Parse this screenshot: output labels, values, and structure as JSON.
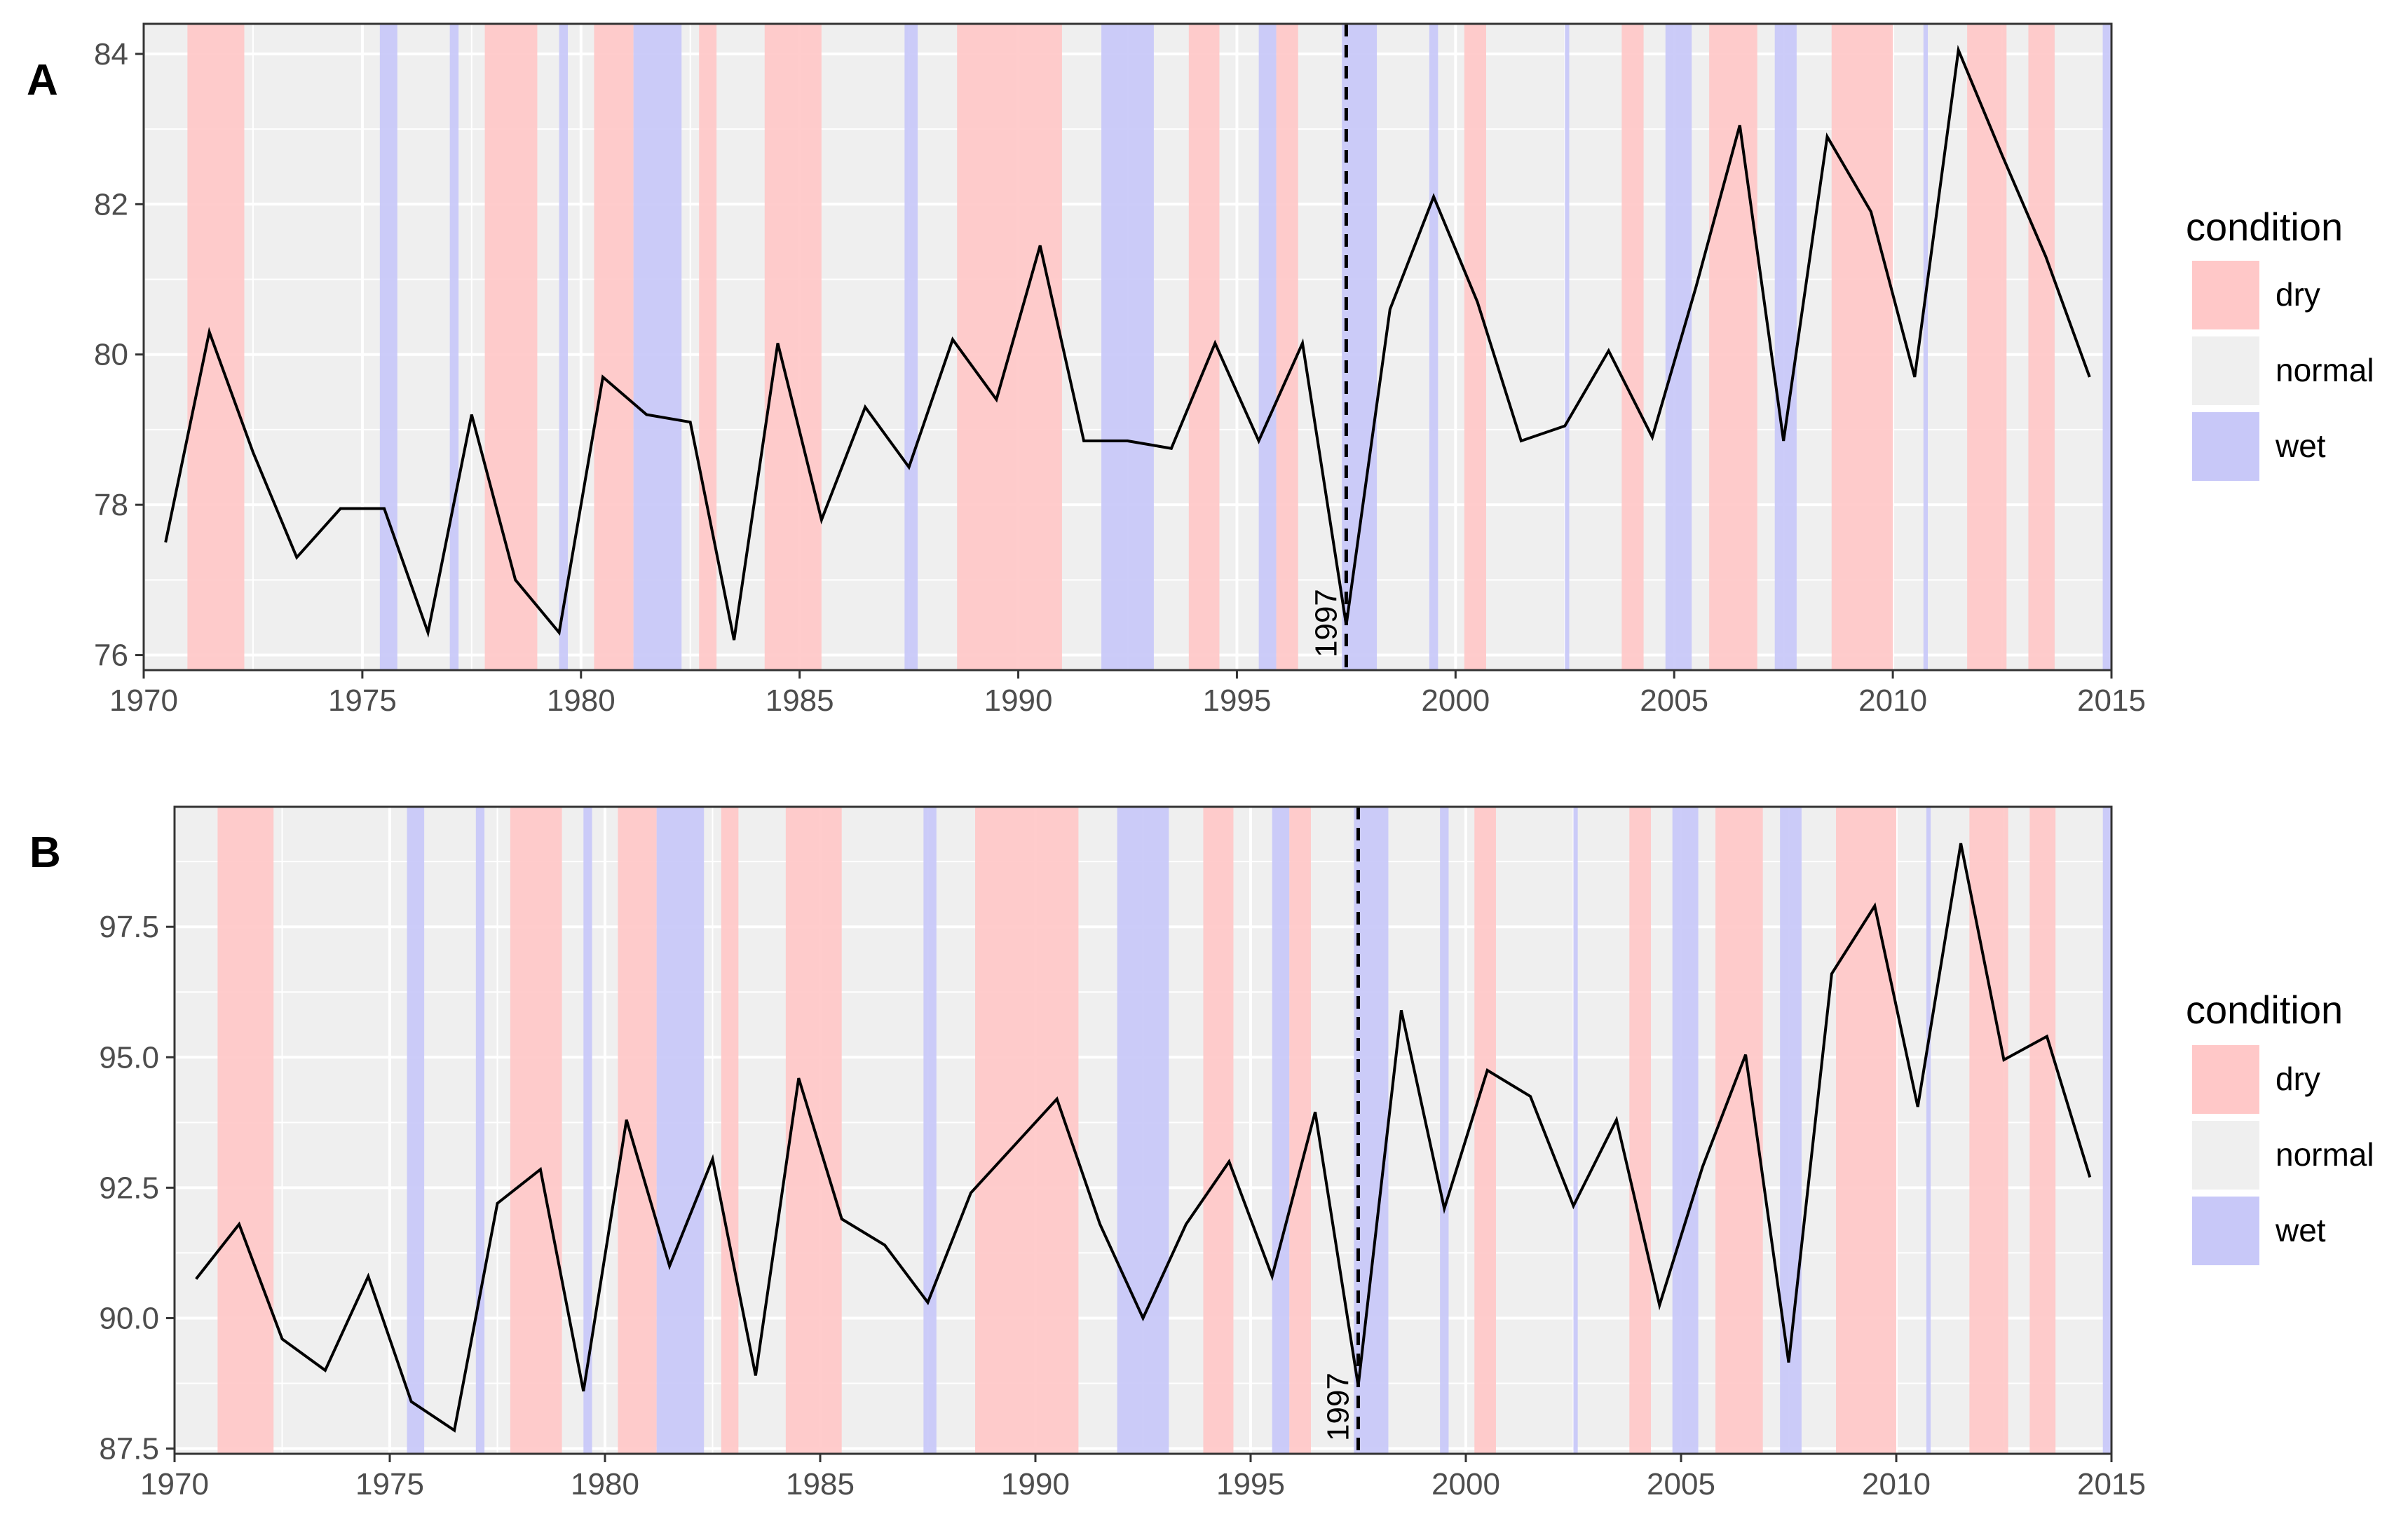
{
  "chart_data": [
    {
      "type": "line",
      "panel_label": "A",
      "title": "",
      "xlabel": "",
      "ylabel": "",
      "xlim": [
        1970,
        2015
      ],
      "ylim": [
        75.8,
        84.4
      ],
      "x_ticks": [
        1970,
        1975,
        1980,
        1985,
        1990,
        1995,
        2000,
        2005,
        2010,
        2015
      ],
      "y_ticks": [
        76,
        78,
        80,
        82,
        84
      ],
      "y_tick_labels": [
        "76",
        "78",
        "80",
        "82",
        "84"
      ],
      "grid": true,
      "legend_position": "right",
      "legend": {
        "title": "condition",
        "items": [
          {
            "label": "dry",
            "color": "#ffc8c8"
          },
          {
            "label": "normal",
            "color": "#efefef"
          },
          {
            "label": "wet",
            "color": "#c8c8f8"
          }
        ]
      },
      "condition_bands": [
        {
          "condition": "dry",
          "start": 1971.0,
          "end": 1972.3
        },
        {
          "condition": "wet",
          "start": 1975.4,
          "end": 1975.8
        },
        {
          "condition": "wet",
          "start": 1977.0,
          "end": 1977.2
        },
        {
          "condition": "dry",
          "start": 1977.8,
          "end": 1979.0
        },
        {
          "condition": "wet",
          "start": 1979.5,
          "end": 1979.7
        },
        {
          "condition": "dry",
          "start": 1980.3,
          "end": 1981.2
        },
        {
          "condition": "wet",
          "start": 1981.2,
          "end": 1982.3
        },
        {
          "condition": "dry",
          "start": 1982.7,
          "end": 1983.1
        },
        {
          "condition": "dry",
          "start": 1984.2,
          "end": 1985.5
        },
        {
          "condition": "wet",
          "start": 1987.4,
          "end": 1987.7
        },
        {
          "condition": "dry",
          "start": 1988.6,
          "end": 1991.0
        },
        {
          "condition": "wet",
          "start": 1991.9,
          "end": 1993.1
        },
        {
          "condition": "dry",
          "start": 1993.9,
          "end": 1994.6
        },
        {
          "condition": "wet",
          "start": 1995.5,
          "end": 1995.9
        },
        {
          "condition": "dry",
          "start": 1995.9,
          "end": 1996.4
        },
        {
          "condition": "wet",
          "start": 1997.4,
          "end": 1998.2
        },
        {
          "condition": "wet",
          "start": 1999.4,
          "end": 1999.6
        },
        {
          "condition": "dry",
          "start": 2000.2,
          "end": 2000.7
        },
        {
          "condition": "wet",
          "start": 2002.5,
          "end": 2002.6
        },
        {
          "condition": "dry",
          "start": 2003.8,
          "end": 2004.3
        },
        {
          "condition": "wet",
          "start": 2004.8,
          "end": 2005.4
        },
        {
          "condition": "dry",
          "start": 2005.8,
          "end": 2006.9
        },
        {
          "condition": "wet",
          "start": 2007.3,
          "end": 2007.8
        },
        {
          "condition": "dry",
          "start": 2008.6,
          "end": 2010.0
        },
        {
          "condition": "wet",
          "start": 2010.7,
          "end": 2010.8
        },
        {
          "condition": "dry",
          "start": 2011.7,
          "end": 2012.6
        },
        {
          "condition": "dry",
          "start": 2013.1,
          "end": 2013.7
        },
        {
          "condition": "wet",
          "start": 2014.8,
          "end": 2015.0
        }
      ],
      "vline": {
        "x": 1997.5,
        "label": "1997"
      },
      "series": [
        {
          "name": "value",
          "color": "#000000",
          "x": [
            1970.5,
            1971.5,
            1972.5,
            1973.5,
            1974.5,
            1975.5,
            1976.5,
            1977.5,
            1978.5,
            1979.5,
            1980.5,
            1981.5,
            1982.5,
            1983.5,
            1984.5,
            1985.5,
            1986.5,
            1987.5,
            1988.5,
            1989.5,
            1990.5,
            1991.5,
            1992.5,
            1993.5,
            1994.5,
            1995.5,
            1996.5,
            1997.5,
            1998.5,
            1999.5,
            2000.5,
            2001.5,
            2002.5,
            2003.5,
            2004.5,
            2005.5,
            2006.5,
            2007.5,
            2008.5,
            2009.5,
            2010.5,
            2011.5,
            2012.5,
            2013.5,
            2014.5
          ],
          "values": [
            77.5,
            80.3,
            78.7,
            77.3,
            77.95,
            77.95,
            76.3,
            79.2,
            77.0,
            76.3,
            79.7,
            79.2,
            79.1,
            76.2,
            80.15,
            77.8,
            79.3,
            78.5,
            80.2,
            79.4,
            81.45,
            78.85,
            78.85,
            78.75,
            80.15,
            78.85,
            80.15,
            76.4,
            80.6,
            82.1,
            80.7,
            78.85,
            79.05,
            80.05,
            78.9,
            80.9,
            83.05,
            78.85,
            82.9,
            81.9,
            79.7,
            84.05,
            82.65,
            81.3,
            79.7
          ]
        }
      ]
    },
    {
      "type": "line",
      "panel_label": "B",
      "title": "",
      "xlabel": "",
      "ylabel": "",
      "xlim": [
        1970,
        2015
      ],
      "ylim": [
        87.4,
        99.8
      ],
      "x_ticks": [
        1970,
        1975,
        1980,
        1985,
        1990,
        1995,
        2000,
        2005,
        2010,
        2015
      ],
      "y_ticks": [
        87.5,
        90.0,
        92.5,
        95.0,
        97.5
      ],
      "y_tick_labels": [
        "87.5",
        "90.0",
        "92.5",
        "95.0",
        "97.5"
      ],
      "grid": true,
      "legend_position": "right",
      "legend": {
        "title": "condition",
        "items": [
          {
            "label": "dry",
            "color": "#ffc8c8"
          },
          {
            "label": "normal",
            "color": "#efefef"
          },
          {
            "label": "wet",
            "color": "#c8c8f8"
          }
        ]
      },
      "condition_bands": [
        {
          "condition": "dry",
          "start": 1971.0,
          "end": 1972.3
        },
        {
          "condition": "wet",
          "start": 1975.4,
          "end": 1975.8
        },
        {
          "condition": "wet",
          "start": 1977.0,
          "end": 1977.2
        },
        {
          "condition": "dry",
          "start": 1977.8,
          "end": 1979.0
        },
        {
          "condition": "wet",
          "start": 1979.5,
          "end": 1979.7
        },
        {
          "condition": "dry",
          "start": 1980.3,
          "end": 1981.2
        },
        {
          "condition": "wet",
          "start": 1981.2,
          "end": 1982.3
        },
        {
          "condition": "dry",
          "start": 1982.7,
          "end": 1983.1
        },
        {
          "condition": "dry",
          "start": 1984.2,
          "end": 1985.5
        },
        {
          "condition": "wet",
          "start": 1987.4,
          "end": 1987.7
        },
        {
          "condition": "dry",
          "start": 1988.6,
          "end": 1991.0
        },
        {
          "condition": "wet",
          "start": 1991.9,
          "end": 1993.1
        },
        {
          "condition": "dry",
          "start": 1993.9,
          "end": 1994.6
        },
        {
          "condition": "wet",
          "start": 1995.5,
          "end": 1995.9
        },
        {
          "condition": "dry",
          "start": 1995.9,
          "end": 1996.4
        },
        {
          "condition": "wet",
          "start": 1997.4,
          "end": 1998.2
        },
        {
          "condition": "wet",
          "start": 1999.4,
          "end": 1999.6
        },
        {
          "condition": "dry",
          "start": 2000.2,
          "end": 2000.7
        },
        {
          "condition": "wet",
          "start": 2002.5,
          "end": 2002.6
        },
        {
          "condition": "dry",
          "start": 2003.8,
          "end": 2004.3
        },
        {
          "condition": "wet",
          "start": 2004.8,
          "end": 2005.4
        },
        {
          "condition": "dry",
          "start": 2005.8,
          "end": 2006.9
        },
        {
          "condition": "wet",
          "start": 2007.3,
          "end": 2007.8
        },
        {
          "condition": "dry",
          "start": 2008.6,
          "end": 2010.0
        },
        {
          "condition": "wet",
          "start": 2010.7,
          "end": 2010.8
        },
        {
          "condition": "dry",
          "start": 2011.7,
          "end": 2012.6
        },
        {
          "condition": "dry",
          "start": 2013.1,
          "end": 2013.7
        },
        {
          "condition": "wet",
          "start": 2014.8,
          "end": 2015.0
        }
      ],
      "vline": {
        "x": 1997.5,
        "label": "1997"
      },
      "series": [
        {
          "name": "value",
          "color": "#000000",
          "x": [
            1970.5,
            1971.5,
            1972.5,
            1973.5,
            1974.5,
            1975.5,
            1976.5,
            1977.5,
            1978.5,
            1979.5,
            1980.5,
            1981.5,
            1982.5,
            1983.5,
            1984.5,
            1985.5,
            1986.5,
            1987.5,
            1988.5,
            1989.5,
            1990.5,
            1991.5,
            1992.5,
            1993.5,
            1994.5,
            1995.5,
            1996.5,
            1997.5,
            1998.5,
            1999.5,
            2000.5,
            2001.5,
            2002.5,
            2003.5,
            2004.5,
            2005.5,
            2006.5,
            2007.5,
            2008.5,
            2009.5,
            2010.5,
            2011.5,
            2012.5,
            2013.5,
            2014.5
          ],
          "values": [
            90.75,
            91.8,
            89.6,
            89.0,
            90.8,
            88.4,
            87.85,
            92.2,
            92.85,
            88.6,
            93.8,
            91.0,
            93.05,
            88.9,
            94.6,
            91.9,
            91.4,
            90.3,
            92.4,
            93.3,
            94.2,
            91.8,
            90.0,
            91.8,
            93.0,
            90.8,
            93.95,
            88.7,
            95.9,
            92.1,
            94.75,
            94.25,
            92.15,
            93.8,
            90.25,
            92.9,
            95.05,
            89.15,
            96.6,
            97.9,
            94.05,
            99.1,
            94.95,
            95.4,
            92.7
          ]
        }
      ]
    }
  ]
}
